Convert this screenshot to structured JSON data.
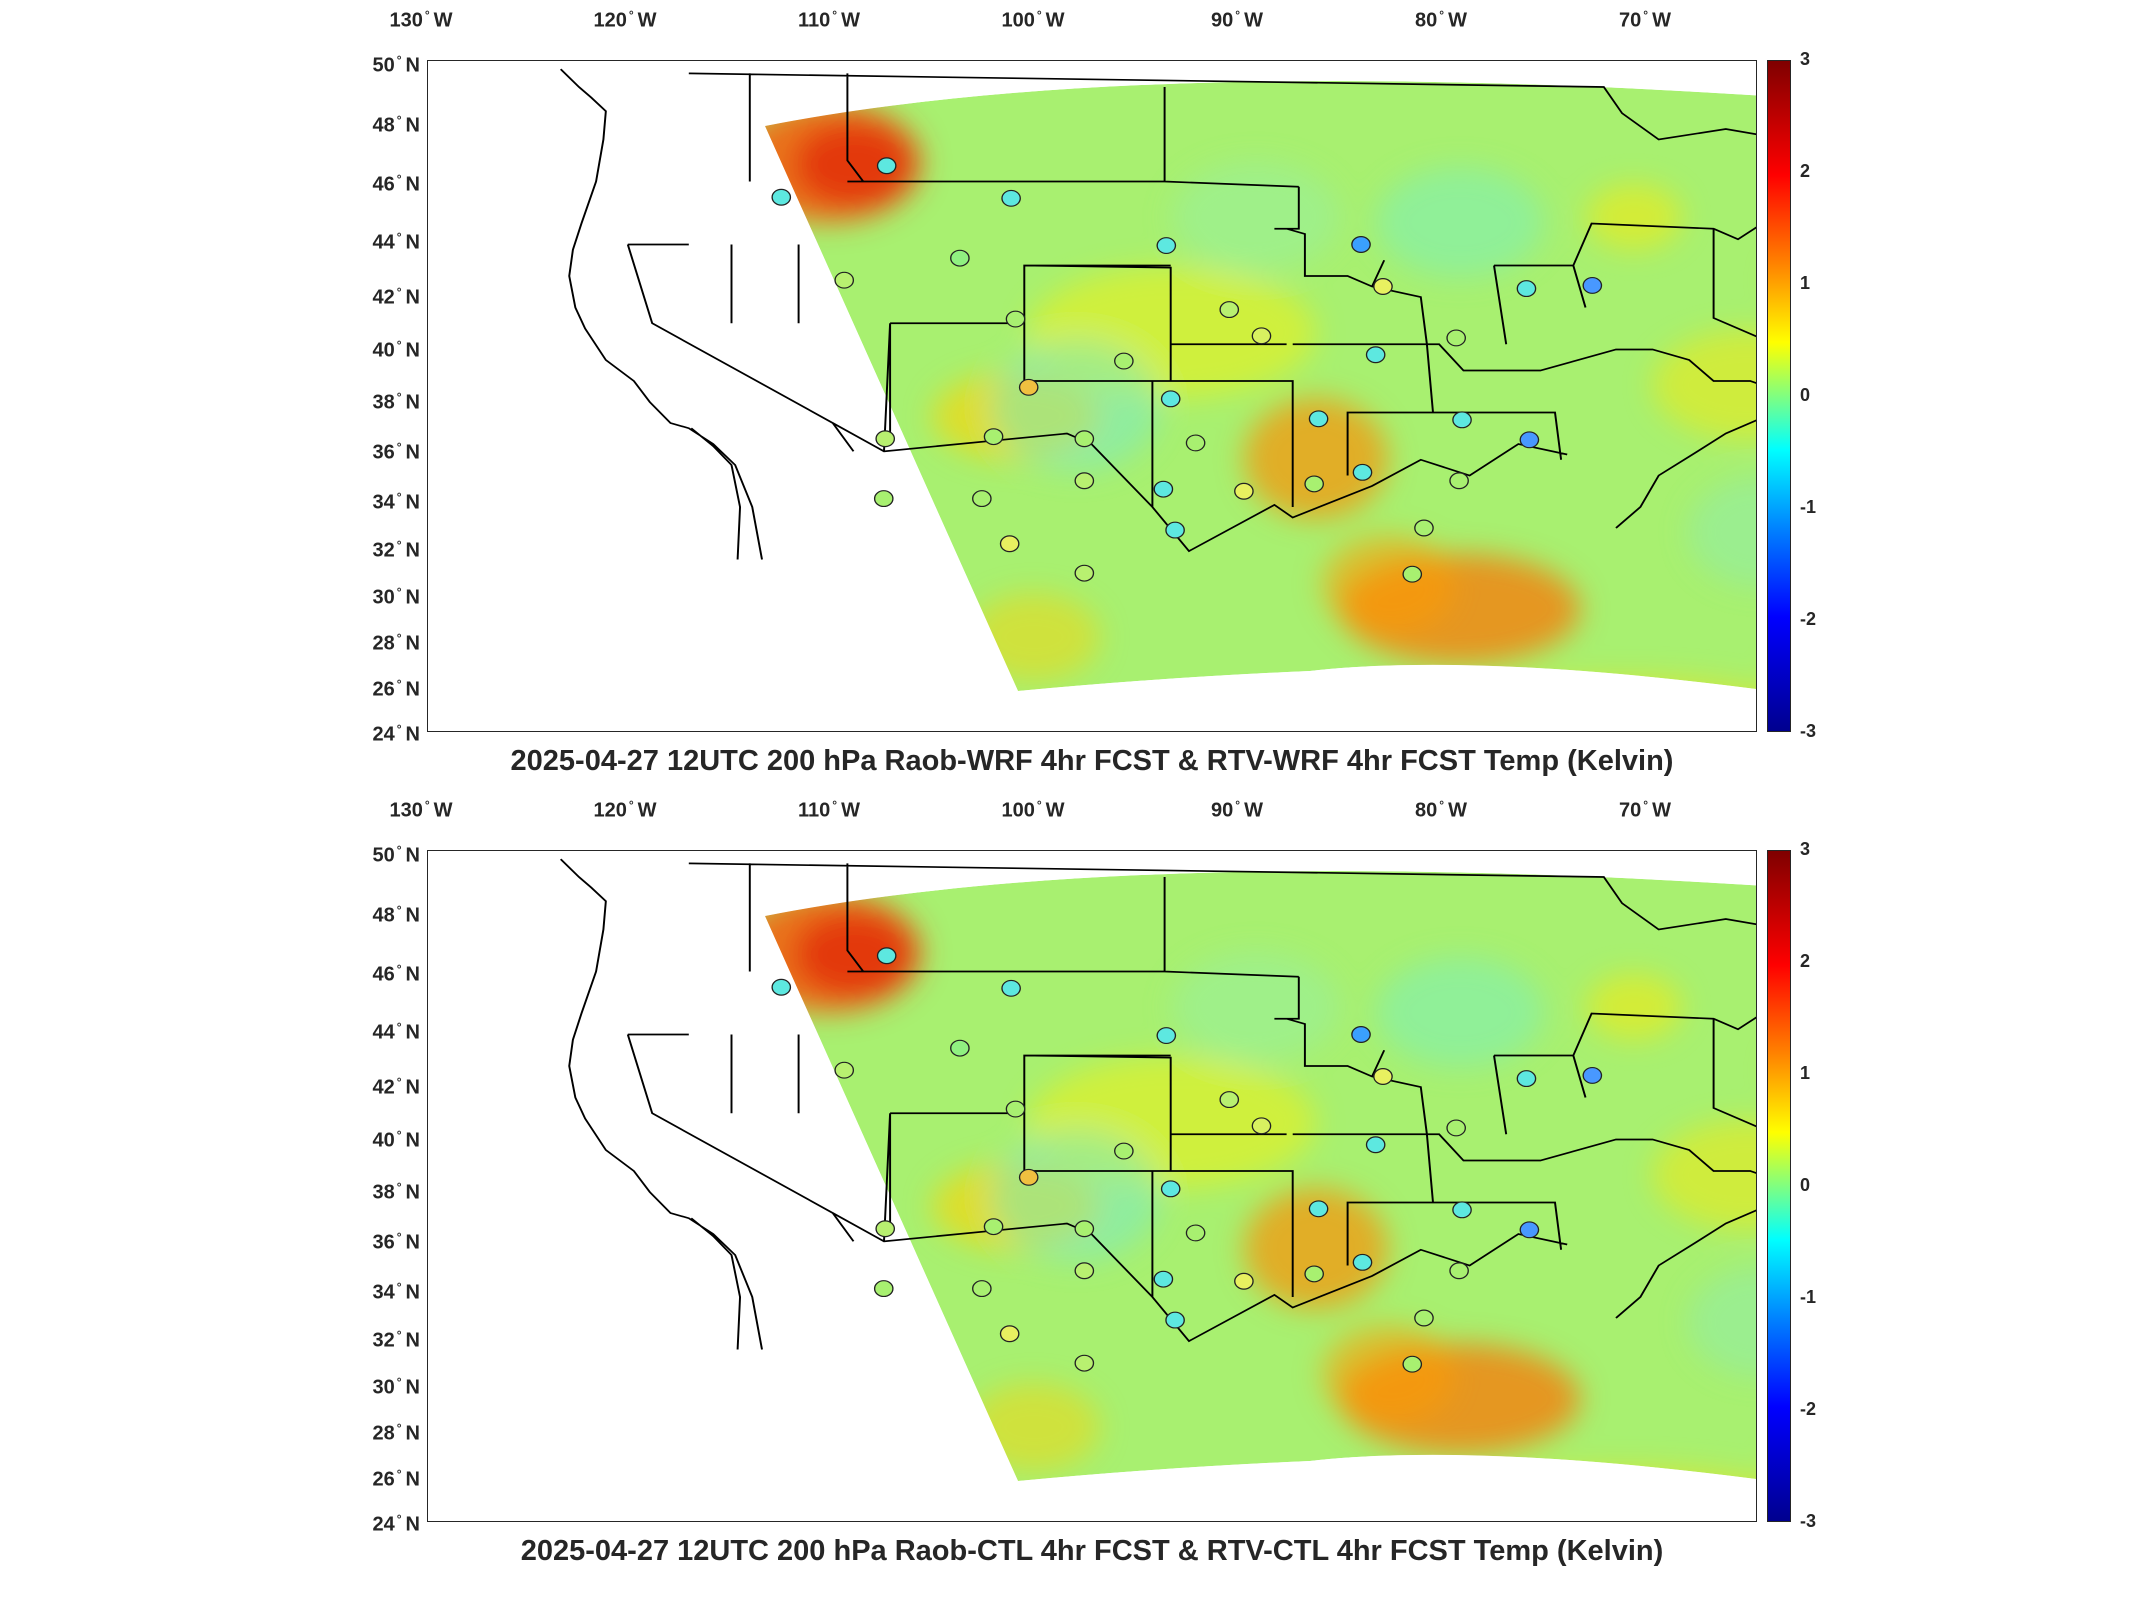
{
  "panels": [
    {
      "title": "2025-04-27 12UTC 200 hPa Raob-WRF 4hr FCST & RTV-WRF 4hr FCST Temp (Kelvin)"
    },
    {
      "title": "2025-04-27 12UTC 200 hPa Raob-CTL 4hr FCST & RTV-CTL 4hr FCST Temp (Kelvin)"
    }
  ],
  "longitude_ticks": [
    "130",
    "120",
    "110",
    "100",
    "90",
    "80",
    "70"
  ],
  "longitude_suffix": "W",
  "latitude_ticks": [
    "50",
    "48",
    "46",
    "44",
    "42",
    "40",
    "38",
    "36",
    "34",
    "32",
    "30",
    "28",
    "26",
    "24"
  ],
  "latitude_suffix": "N",
  "degree_symbol": "°",
  "colorbar": {
    "ticks": [
      "3",
      "2",
      "1",
      "0",
      "-1",
      "-2",
      "-3"
    ],
    "range": [
      -3,
      3
    ],
    "colormap": "jet",
    "colors": [
      "#7f0000",
      "#ff0000",
      "#ff8000",
      "#ffff00",
      "#80ff80",
      "#00ffff",
      "#0080ff",
      "#0000ff",
      "#00008f"
    ]
  },
  "map_colors": {
    "land_outline": "#000000",
    "background": "#ffffff",
    "field_base": "#a8f070"
  }
}
